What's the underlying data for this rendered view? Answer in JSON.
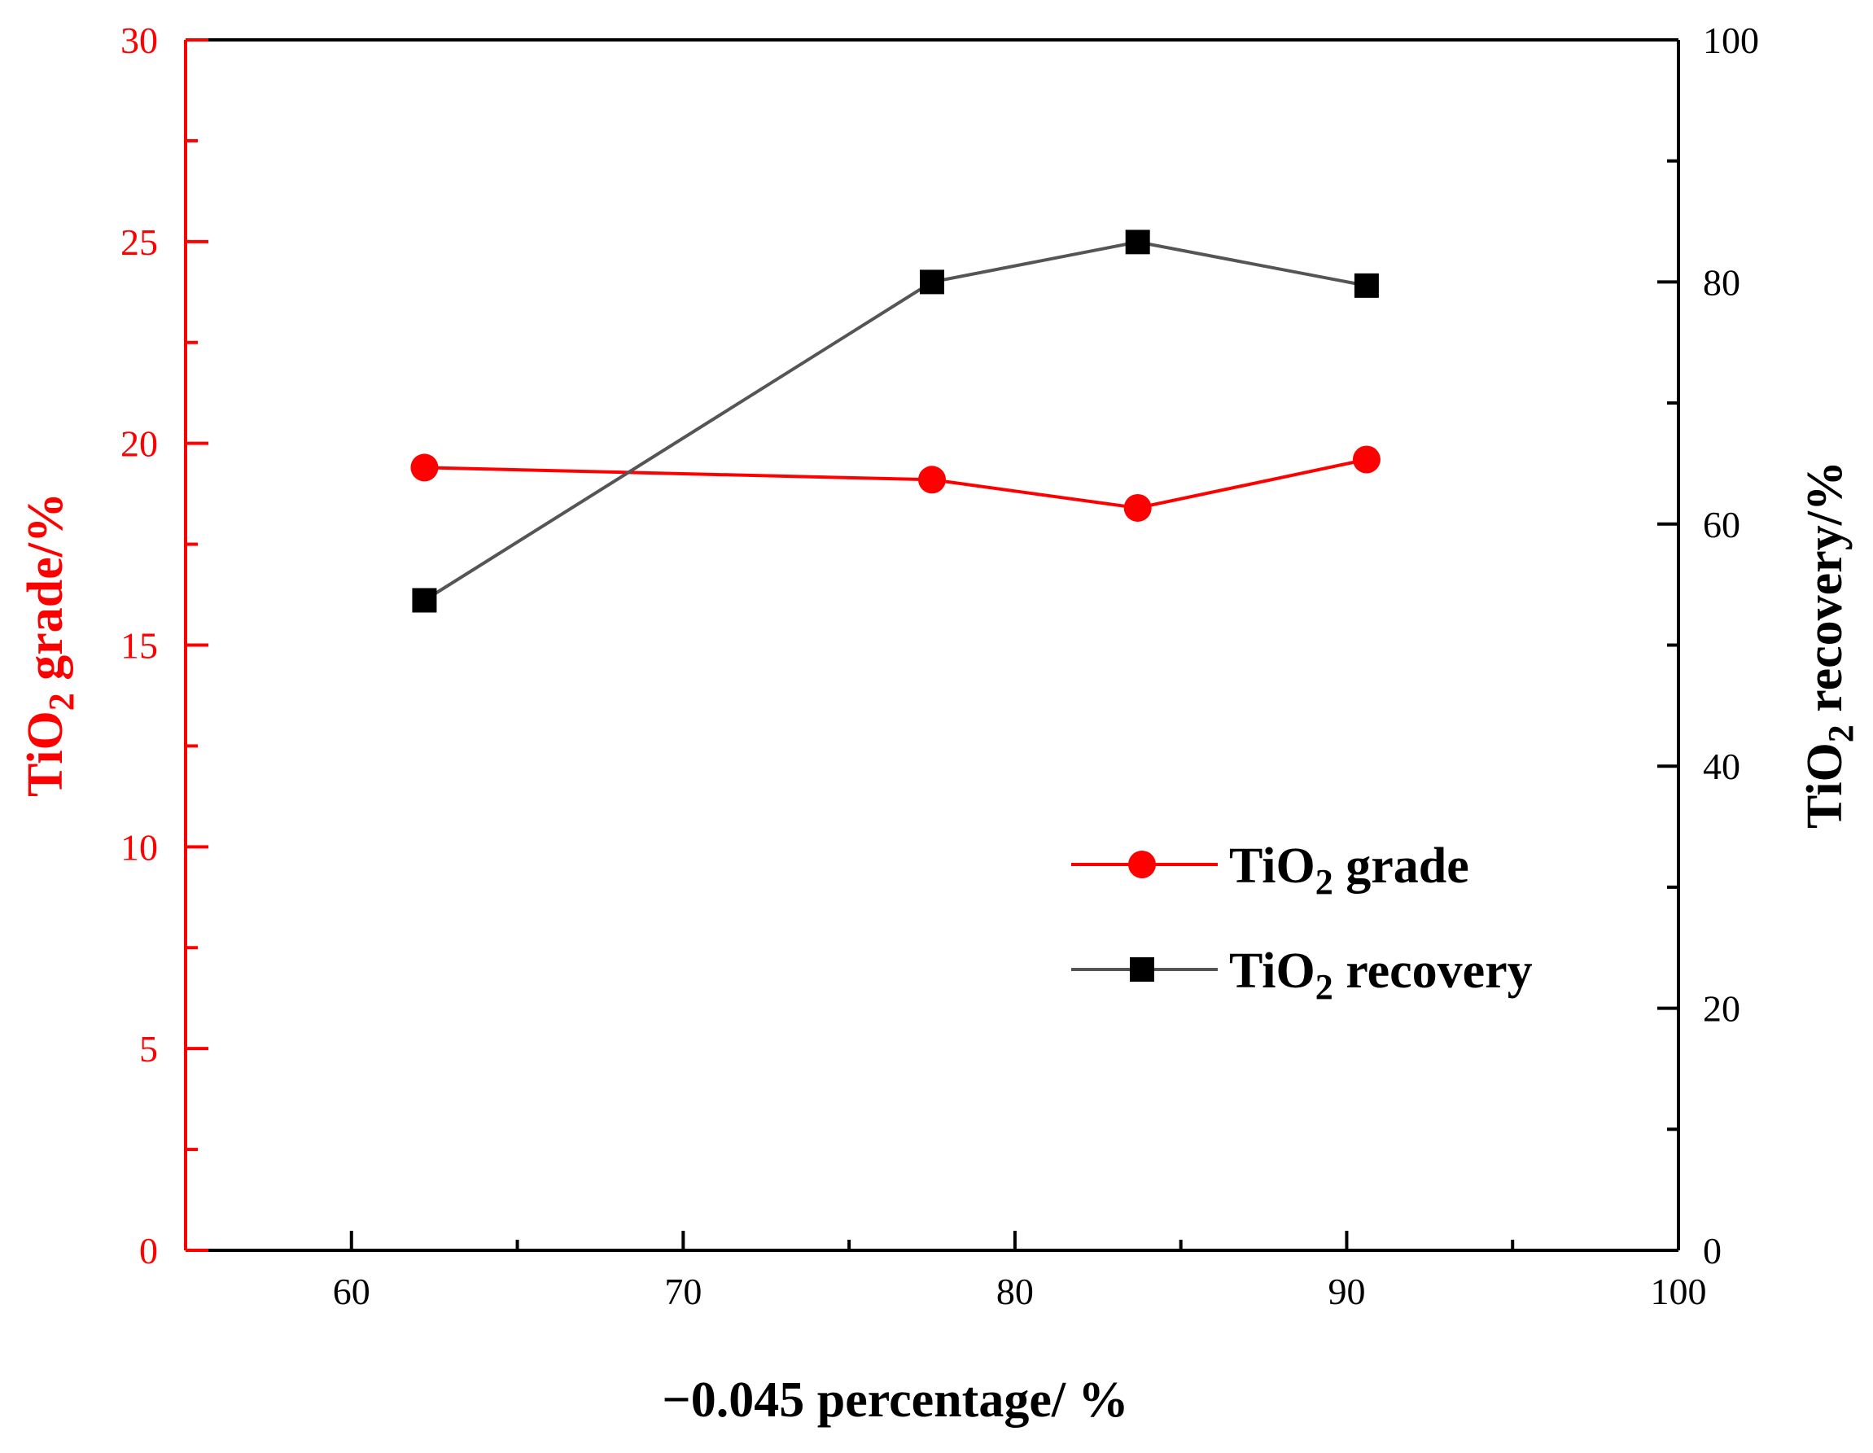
{
  "chart_data": {
    "type": "line",
    "x": [
      62.2,
      77.5,
      83.7,
      90.6
    ],
    "x_axis": {
      "label": "−0.045 percentage/ %",
      "range": [
        55,
        100
      ],
      "ticks": [
        60,
        70,
        80,
        90,
        100
      ],
      "minor_ticks": [
        65,
        75,
        85,
        95
      ]
    },
    "y_left_axis": {
      "label_main": "TiO",
      "label_sub": "2",
      "label_rest": " grade/%",
      "range": [
        0,
        30
      ],
      "ticks": [
        0,
        5,
        10,
        15,
        20,
        25,
        30
      ],
      "minor_ticks": [
        2.5,
        7.5,
        12.5,
        17.5,
        22.5,
        27.5
      ],
      "color": "#ff0000"
    },
    "y_right_axis": {
      "label_main": "TiO",
      "label_sub": "2",
      "label_rest": " recovery/%",
      "range": [
        0,
        100
      ],
      "ticks": [
        0,
        20,
        40,
        60,
        80,
        100
      ],
      "minor_ticks": [
        10,
        30,
        50,
        70,
        90
      ],
      "color": "#000000"
    },
    "series": [
      {
        "name": "TiO2 grade",
        "legend_main": "TiO",
        "legend_sub": "2",
        "legend_rest": " grade",
        "axis": "left",
        "marker": "circle",
        "line_color": "#ff0000",
        "marker_color": "#ff0000",
        "values": [
          19.4,
          19.1,
          18.4,
          19.6
        ]
      },
      {
        "name": "TiO2 recovery",
        "legend_main": "TiO",
        "legend_sub": "2",
        "legend_rest": " recovery",
        "axis": "right",
        "marker": "square",
        "line_color": "#555555",
        "marker_color": "#000000",
        "values": [
          53.7,
          80.0,
          83.3,
          79.7
        ]
      }
    ],
    "legend_position": "center-right",
    "grid": false
  }
}
